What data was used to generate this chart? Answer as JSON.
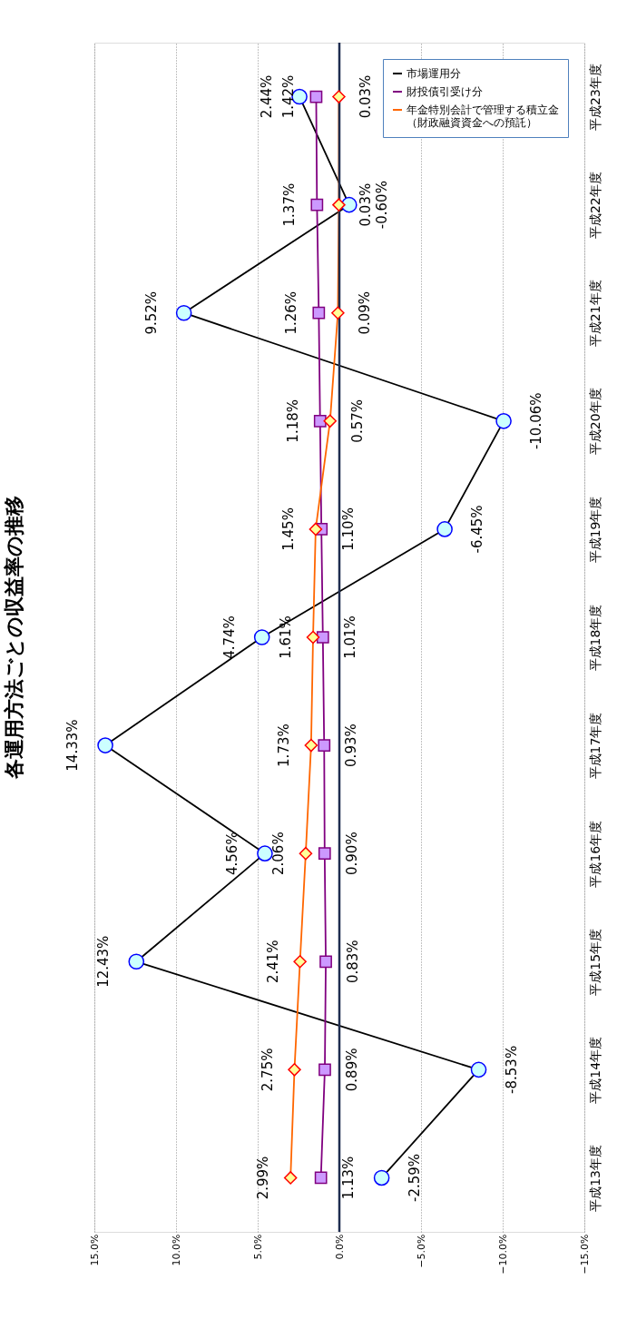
{
  "chart_data": {
    "type": "line",
    "orientation": "horizontal",
    "title": "各運用方法ごとの収益率の推移",
    "categories": [
      "平成23年度",
      "平成22年度",
      "平成21年度",
      "平成20年度",
      "平成19年度",
      "平成18年度",
      "平成17年度",
      "平成16年度",
      "平成15年度",
      "平成14年度",
      "平成13年度"
    ],
    "series": [
      {
        "name": "市場運用分",
        "color": "#000000",
        "marker": "circle",
        "values": [
          2.44,
          -0.6,
          9.52,
          -10.06,
          -6.45,
          4.74,
          14.33,
          4.56,
          12.43,
          -8.53,
          -2.59
        ],
        "value_labels": [
          "2.44%",
          "-0.60%",
          "9.52%",
          "-10.06%",
          "-6.45%",
          "4.74%",
          "14.33%",
          "4.56%",
          "12.43%",
          "-8.53%",
          "-2.59%"
        ]
      },
      {
        "name": "財投債引受け分",
        "color": "#800080",
        "marker": "square",
        "values": [
          1.42,
          1.37,
          1.26,
          1.18,
          1.1,
          1.01,
          0.93,
          0.9,
          0.83,
          0.89,
          1.13
        ],
        "value_labels": [
          "1.42%",
          "1.37%",
          "1.26%",
          "1.18%",
          "1.10%",
          "1.01%",
          "0.93%",
          "0.90%",
          "0.83%",
          "0.89%",
          "1.13%"
        ]
      },
      {
        "name": "年金特別会計で管理する積立金（財政融資資金への預託）",
        "color": "#ff6600",
        "marker": "diamond",
        "values": [
          0.03,
          0.03,
          0.09,
          0.57,
          1.45,
          1.61,
          1.73,
          2.06,
          2.41,
          2.75,
          2.99
        ],
        "value_labels": [
          "0.03%",
          "0.03%",
          "0.09%",
          "0.57%",
          "1.45%",
          "1.61%",
          "1.73%",
          "2.06%",
          "2.41%",
          "2.75%",
          "2.99%"
        ]
      }
    ],
    "xlim": [
      15,
      -15
    ],
    "xticks": [
      {
        "value": 15,
        "label": "15.0%"
      },
      {
        "value": 10,
        "label": "10.0%"
      },
      {
        "value": 5,
        "label": "5.0%"
      },
      {
        "value": 0,
        "label": "0.0%"
      },
      {
        "value": -5,
        "label": "−5.0%"
      },
      {
        "value": -10,
        "label": "−10.0%"
      },
      {
        "value": -15,
        "label": "−15.0%"
      }
    ],
    "ref_lines": [
      {
        "axis": "x",
        "value": 0,
        "color": "#1f2d50"
      }
    ],
    "grid": "x",
    "legend": "top right"
  }
}
